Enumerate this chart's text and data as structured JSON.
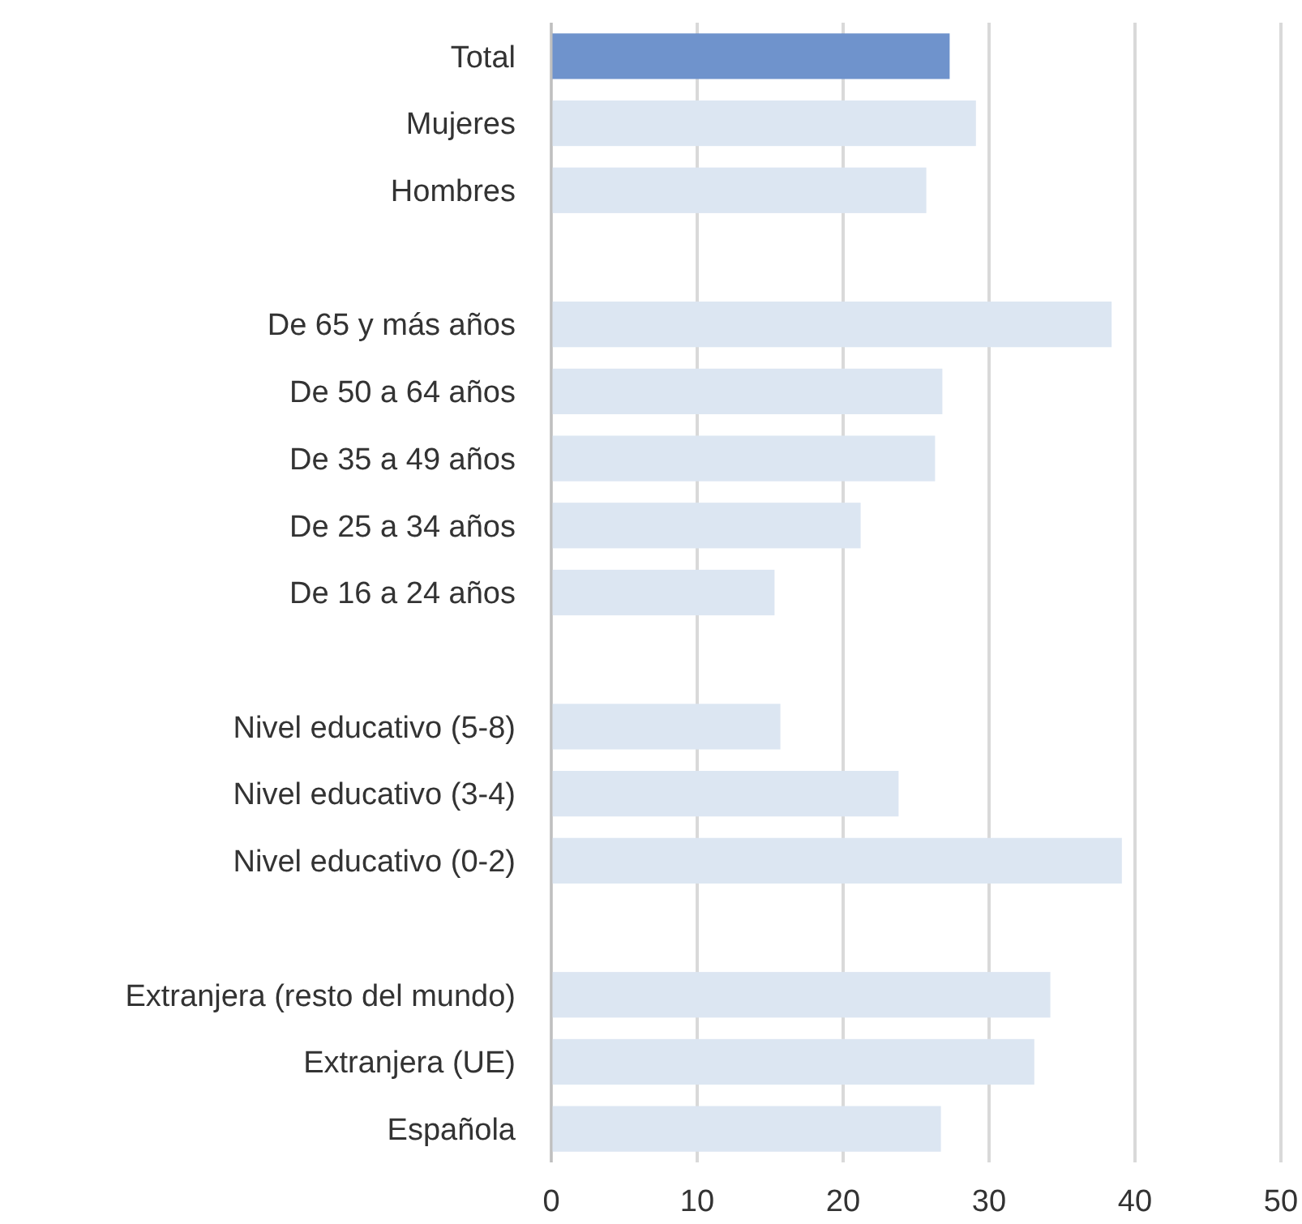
{
  "chart_data": {
    "type": "bar",
    "orientation": "horizontal",
    "categories": [
      "Total",
      "Mujeres",
      "Hombres",
      null,
      "De 65 y más años",
      "De 50 a 64 años",
      "De 35 a 49 años",
      "De 25 a 34 años",
      "De 16 a 24 años",
      null,
      "Nivel educativo (5-8)",
      "Nivel educativo (3-4)",
      "Nivel educativo (0-2)",
      null,
      "Extranjera (resto del mundo)",
      "Extranjera (UE)",
      "Española"
    ],
    "values": [
      27.3,
      29.1,
      25.7,
      null,
      38.4,
      26.8,
      26.3,
      21.2,
      15.3,
      null,
      15.7,
      23.8,
      39.1,
      null,
      34.2,
      33.1,
      26.7
    ],
    "colors": [
      "#6f93cc",
      "#dce6f2",
      "#dce6f2",
      null,
      "#dce6f2",
      "#dce6f2",
      "#dce6f2",
      "#dce6f2",
      "#dce6f2",
      null,
      "#dce6f2",
      "#dce6f2",
      "#dce6f2",
      null,
      "#dce6f2",
      "#dce6f2",
      "#dce6f2"
    ],
    "xlim": [
      0,
      50
    ],
    "xticks": [
      0,
      10,
      20,
      30,
      40,
      50
    ],
    "grid": "x"
  }
}
